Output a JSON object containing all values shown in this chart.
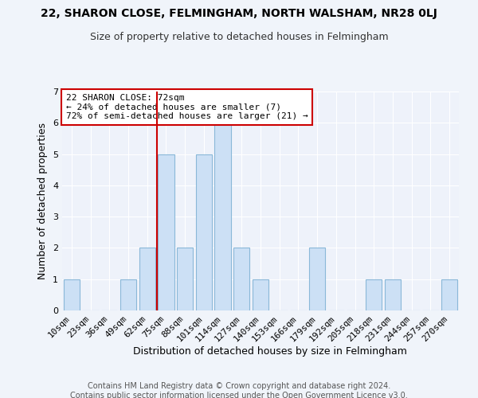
{
  "title1": "22, SHARON CLOSE, FELMINGHAM, NORTH WALSHAM, NR28 0LJ",
  "title2": "Size of property relative to detached houses in Felmingham",
  "xlabel": "Distribution of detached houses by size in Felmingham",
  "ylabel": "Number of detached properties",
  "bar_labels": [
    "10sqm",
    "23sqm",
    "36sqm",
    "49sqm",
    "62sqm",
    "75sqm",
    "88sqm",
    "101sqm",
    "114sqm",
    "127sqm",
    "140sqm",
    "153sqm",
    "166sqm",
    "179sqm",
    "192sqm",
    "205sqm",
    "218sqm",
    "231sqm",
    "244sqm",
    "257sqm",
    "270sqm"
  ],
  "bar_values": [
    1,
    0,
    0,
    1,
    2,
    5,
    2,
    5,
    6,
    2,
    1,
    0,
    0,
    2,
    0,
    0,
    1,
    1,
    0,
    0,
    1
  ],
  "bar_color": "#cce0f5",
  "bar_edgecolor": "#8ab8d8",
  "property_line_color": "#cc0000",
  "property_line_idx": 4.5,
  "annotation_text": "22 SHARON CLOSE: 72sqm\n← 24% of detached houses are smaller (7)\n72% of semi-detached houses are larger (21) →",
  "ylim": [
    0,
    7
  ],
  "yticks": [
    0,
    1,
    2,
    3,
    4,
    5,
    6,
    7
  ],
  "footer_text1": "Contains HM Land Registry data © Crown copyright and database right 2024.",
  "footer_text2": "Contains public sector information licensed under the Open Government Licence v3.0.",
  "background_color": "#f0f4fa",
  "plot_background": "#eef2fa",
  "title1_fontsize": 10,
  "title2_fontsize": 9,
  "xlabel_fontsize": 9,
  "ylabel_fontsize": 9,
  "tick_fontsize": 8,
  "annot_fontsize": 8,
  "footer_fontsize": 7
}
